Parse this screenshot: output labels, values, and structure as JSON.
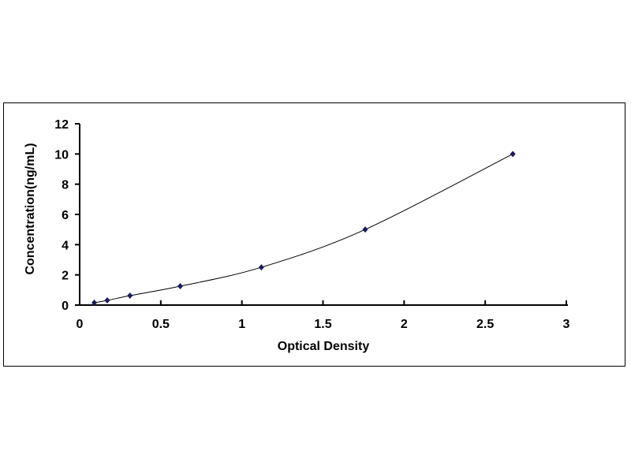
{
  "chart_data": {
    "type": "scatter",
    "xlabel": "Optical Density",
    "ylabel": "Concentration(ng/mL)",
    "xlim": [
      0,
      3
    ],
    "ylim": [
      0,
      12
    ],
    "xticks": [
      "0",
      "0.5",
      "1",
      "1.5",
      "2",
      "2.5",
      "3"
    ],
    "yticks": [
      "0",
      "2",
      "4",
      "6",
      "8",
      "10",
      "12"
    ],
    "grid": false,
    "trendline": "smooth curve",
    "marker_color": "#1a1a5e",
    "points": [
      {
        "x": 0.09,
        "y": 0.156
      },
      {
        "x": 0.17,
        "y": 0.312
      },
      {
        "x": 0.31,
        "y": 0.625
      },
      {
        "x": 0.62,
        "y": 1.25
      },
      {
        "x": 1.12,
        "y": 2.5
      },
      {
        "x": 1.76,
        "y": 5
      },
      {
        "x": 2.67,
        "y": 10
      }
    ]
  }
}
